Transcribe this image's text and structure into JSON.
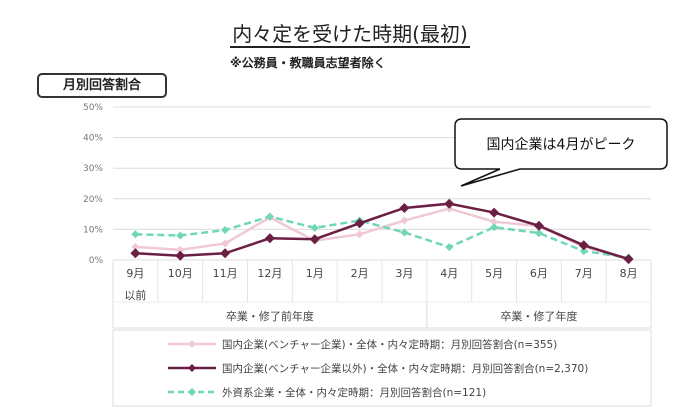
{
  "title": "内々定を受けた時期(最初)",
  "subtitle": "※公務員・教職員志望者除く",
  "unit_label": "月別回答割合",
  "callout": "国内企業は4月がピーク",
  "chart_data": {
    "type": "line",
    "categories": [
      "9月\n以前",
      "10月",
      "11月",
      "12月",
      "1月",
      "2月",
      "3月",
      "4月",
      "5月",
      "6月",
      "7月",
      "8月"
    ],
    "category_groups": [
      {
        "label": "卒業・修了前年度",
        "span": 7
      },
      {
        "label": "卒業・修了年度",
        "span": 5
      }
    ],
    "yticks": [
      "0%",
      "10%",
      "20%",
      "30%",
      "40%",
      "50%"
    ],
    "ylim": [
      0,
      50
    ],
    "grid": true,
    "legend_position": "bottom",
    "series": [
      {
        "name": "国内企業(ベンチャー企業)・全体・内々定時期：月別回答割合(n=355)",
        "color": "#f0c8d6",
        "style": "solid",
        "values": [
          4.3,
          3.3,
          5.4,
          13.9,
          6.3,
          8.4,
          12.9,
          16.8,
          12.5,
          11.1,
          4.3,
          0.2
        ]
      },
      {
        "name": "国内企業(ベンチャー企業以外)・全体・内々定時期：月別回答割合(n=2,370)",
        "color": "#6b1f43",
        "style": "solid",
        "values": [
          2.2,
          1.4,
          2.2,
          7.1,
          6.8,
          12.0,
          17.0,
          18.4,
          15.5,
          11.2,
          4.8,
          0.3
        ]
      },
      {
        "name": "外資系企業・全体・内々定時期：月別回答割合(n=121)",
        "color": "#6fd6b8",
        "style": "dashed",
        "values": [
          8.4,
          8.0,
          9.8,
          14.2,
          10.5,
          12.9,
          9.0,
          4.2,
          10.7,
          8.8,
          2.9,
          0.8
        ]
      }
    ]
  }
}
